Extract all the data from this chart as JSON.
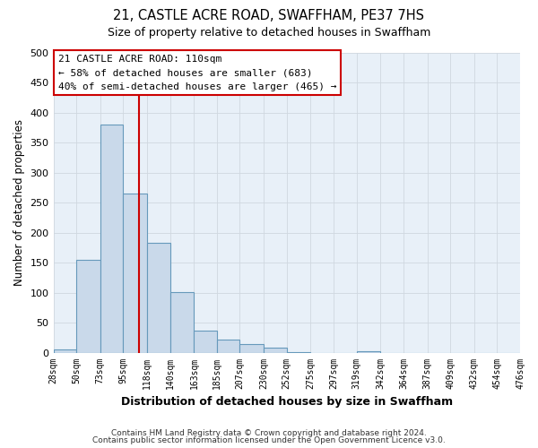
{
  "title": "21, CASTLE ACRE ROAD, SWAFFHAM, PE37 7HS",
  "subtitle": "Size of property relative to detached houses in Swaffham",
  "xlabel": "Distribution of detached houses by size in Swaffham",
  "ylabel": "Number of detached properties",
  "footer_line1": "Contains HM Land Registry data © Crown copyright and database right 2024.",
  "footer_line2": "Contains public sector information licensed under the Open Government Licence v3.0.",
  "bar_edges": [
    28,
    50,
    73,
    95,
    118,
    140,
    163,
    185,
    207,
    230,
    252,
    275,
    297,
    319,
    342,
    364,
    387,
    409,
    432,
    454,
    476
  ],
  "bar_heights": [
    6,
    155,
    381,
    265,
    183,
    101,
    36,
    22,
    14,
    8,
    1,
    0,
    0,
    2,
    0,
    0,
    0,
    0,
    0,
    0
  ],
  "bar_color": "#c9d9ea",
  "bar_edge_color": "#6699bb",
  "vline_x": 110,
  "vline_color": "#cc0000",
  "annotation_title": "21 CASTLE ACRE ROAD: 110sqm",
  "annotation_line1": "← 58% of detached houses are smaller (683)",
  "annotation_line2": "40% of semi-detached houses are larger (465) →",
  "annotation_box_color": "#ffffff",
  "annotation_box_edge": "#cc0000",
  "ylim": [
    0,
    500
  ],
  "yticks": [
    0,
    50,
    100,
    150,
    200,
    250,
    300,
    350,
    400,
    450,
    500
  ],
  "xtick_labels": [
    "28sqm",
    "50sqm",
    "73sqm",
    "95sqm",
    "118sqm",
    "140sqm",
    "163sqm",
    "185sqm",
    "207sqm",
    "230sqm",
    "252sqm",
    "275sqm",
    "297sqm",
    "319sqm",
    "342sqm",
    "364sqm",
    "387sqm",
    "409sqm",
    "432sqm",
    "454sqm",
    "476sqm"
  ],
  "grid_color": "#d0d8e0",
  "bg_color": "#e8f0f8",
  "fig_bg_color": "#ffffff"
}
